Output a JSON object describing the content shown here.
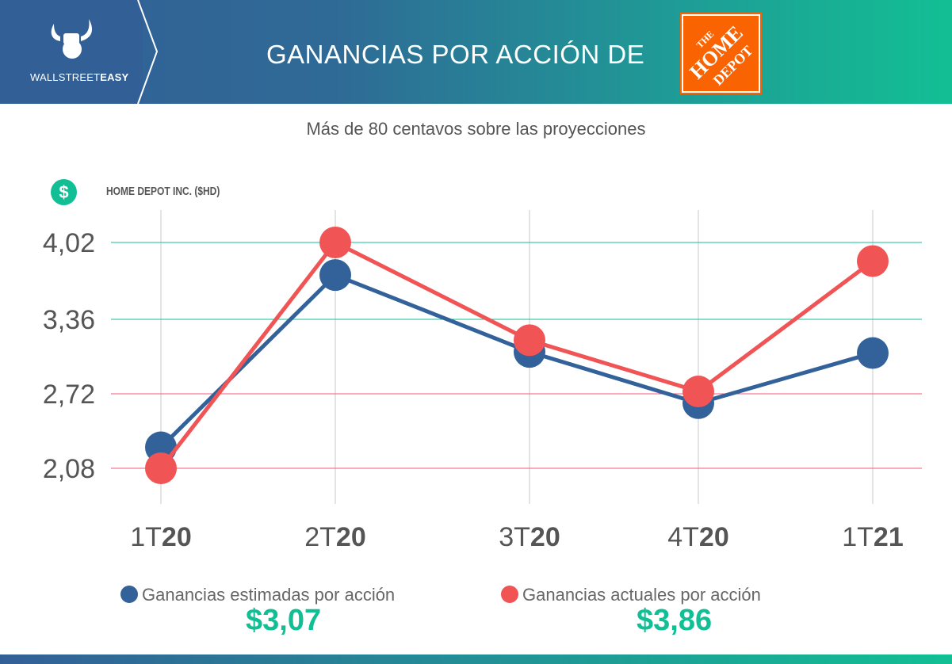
{
  "header": {
    "brand": {
      "light": "WALLSTREET",
      "bold": "EASY"
    },
    "title": "GANANCIAS POR ACCIÓN DE",
    "company_logo_text": "THE HOME DEPOT"
  },
  "subtitle": "Más de 80 centavos sobre las proyecciones",
  "company_label": "HOME DEPOT INC. ($HD)",
  "dollar_icon": "$",
  "chart_data": {
    "type": "line",
    "title": "GANANCIAS POR ACCIÓN DE THE HOME DEPOT",
    "categories": [
      {
        "light": "1T",
        "bold": "20"
      },
      {
        "light": "2T",
        "bold": "20"
      },
      {
        "light": "3T",
        "bold": "20"
      },
      {
        "light": "4T",
        "bold": "20"
      },
      {
        "light": "1T",
        "bold": "21"
      }
    ],
    "yticks": [
      "4,02",
      "3,36",
      "2,72",
      "2,08"
    ],
    "ytick_values": [
      4.02,
      3.36,
      2.72,
      2.08
    ],
    "ylim": [
      2.08,
      4.02
    ],
    "series": [
      {
        "name": "Ganancias estimadas por acción",
        "color": "#336199",
        "values": [
          2.26,
          3.74,
          3.08,
          2.64,
          3.07
        ]
      },
      {
        "name": "Ganancias actuales por acción",
        "color": "#f05455",
        "values": [
          2.08,
          4.02,
          3.18,
          2.74,
          3.86
        ]
      }
    ],
    "legend_position": "bottom",
    "grid_colors": {
      "upper": "#12bf94",
      "lower": "#f05a78",
      "vertical": "#c8c8c8"
    }
  },
  "legend": [
    {
      "label": "Ganancias estimadas por acción",
      "value": "$3,07"
    },
    {
      "label": "Ganancias actuales por acción",
      "value": "$3,86"
    }
  ]
}
